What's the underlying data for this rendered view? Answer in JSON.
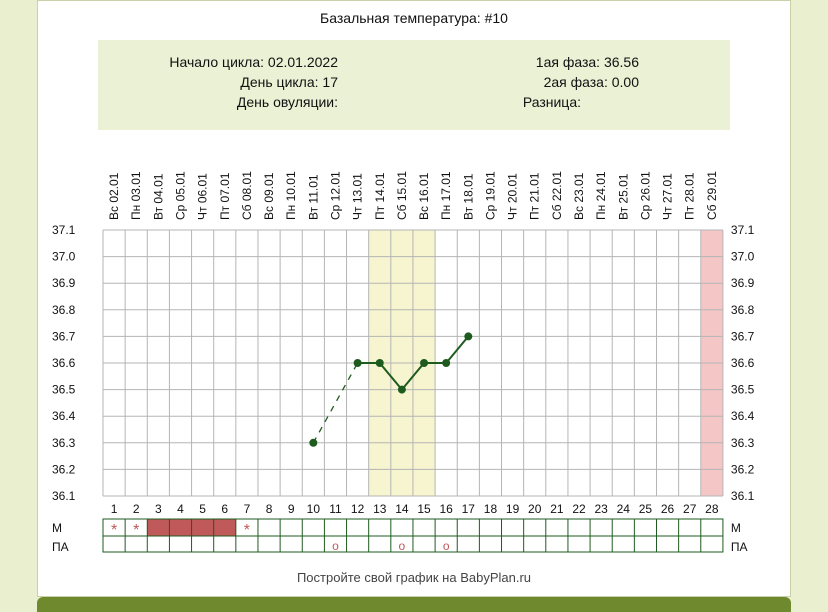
{
  "header": {
    "title": "Базальная температура: #10"
  },
  "info": {
    "cycle_start": "Начало цикла: 02.01.2022",
    "cycle_day": "День цикла: 17",
    "ovulation_day": "День овуляции:",
    "phase1": "1ая фаза: 36.56",
    "phase2": "2ая фаза: 0.00",
    "difference": "Разница:"
  },
  "footer": {
    "text": "Постройте свой график на BabyPlan.ru"
  },
  "colors": {
    "line": "#1e5b1e",
    "highlight": "#f7f5cf",
    "end_marker": "#f4c6c6",
    "menstruation": "#c0595a",
    "grid": "#b5b5b5",
    "green_bar": "#6f8a2e"
  },
  "chart_data": {
    "type": "line",
    "title": "Базальная температура: #10",
    "dates": [
      "Вс 02.01",
      "Пн 03.01",
      "Вт 04.01",
      "Ср 05.01",
      "Чт 06.01",
      "Пт 07.01",
      "Сб 08.01",
      "Вс 09.01",
      "Пн 10.01",
      "Вт 11.01",
      "Ср 12.01",
      "Чт 13.01",
      "Пт 14.01",
      "Сб 15.01",
      "Вс 16.01",
      "Пн 17.01",
      "Вт 18.01",
      "Ср 19.01",
      "Чт 20.01",
      "Пт 21.01",
      "Сб 22.01",
      "Вс 23.01",
      "Пн 24.01",
      "Вт 25.01",
      "Ср 26.01",
      "Чт 27.01",
      "Пт 28.01",
      "Сб 29.01"
    ],
    "days": [
      1,
      2,
      3,
      4,
      5,
      6,
      7,
      8,
      9,
      10,
      11,
      12,
      13,
      14,
      15,
      16,
      17,
      18,
      19,
      20,
      21,
      22,
      23,
      24,
      25,
      26,
      27,
      28
    ],
    "y_ticks": [
      "37.1",
      "37.0",
      "36.9",
      "36.8",
      "36.7",
      "36.6",
      "36.5",
      "36.4",
      "36.3",
      "36.2",
      "36.1"
    ],
    "ylim": [
      36.1,
      37.1
    ],
    "series": [
      {
        "points": [
          {
            "day": 10,
            "value": 36.3
          },
          {
            "day": 12,
            "value": 36.6
          },
          {
            "day": 13,
            "value": 36.6
          },
          {
            "day": 14,
            "value": 36.5
          },
          {
            "day": 15,
            "value": 36.6
          },
          {
            "day": 16,
            "value": 36.6
          },
          {
            "day": 17,
            "value": 36.7
          }
        ],
        "dashed_segments": [
          [
            10,
            12
          ]
        ]
      }
    ],
    "highlighted_days": [
      13,
      14,
      15
    ],
    "end_day_marker": 28,
    "rows": {
      "m_label": "М",
      "pa_label": "ПА",
      "m_star_days": [
        1,
        2,
        7
      ],
      "m_filled_days": [
        3,
        4,
        5,
        6
      ],
      "pa_circle_days": [
        11,
        14,
        16
      ],
      "star_symbol": "*",
      "circle_symbol": "o"
    }
  }
}
